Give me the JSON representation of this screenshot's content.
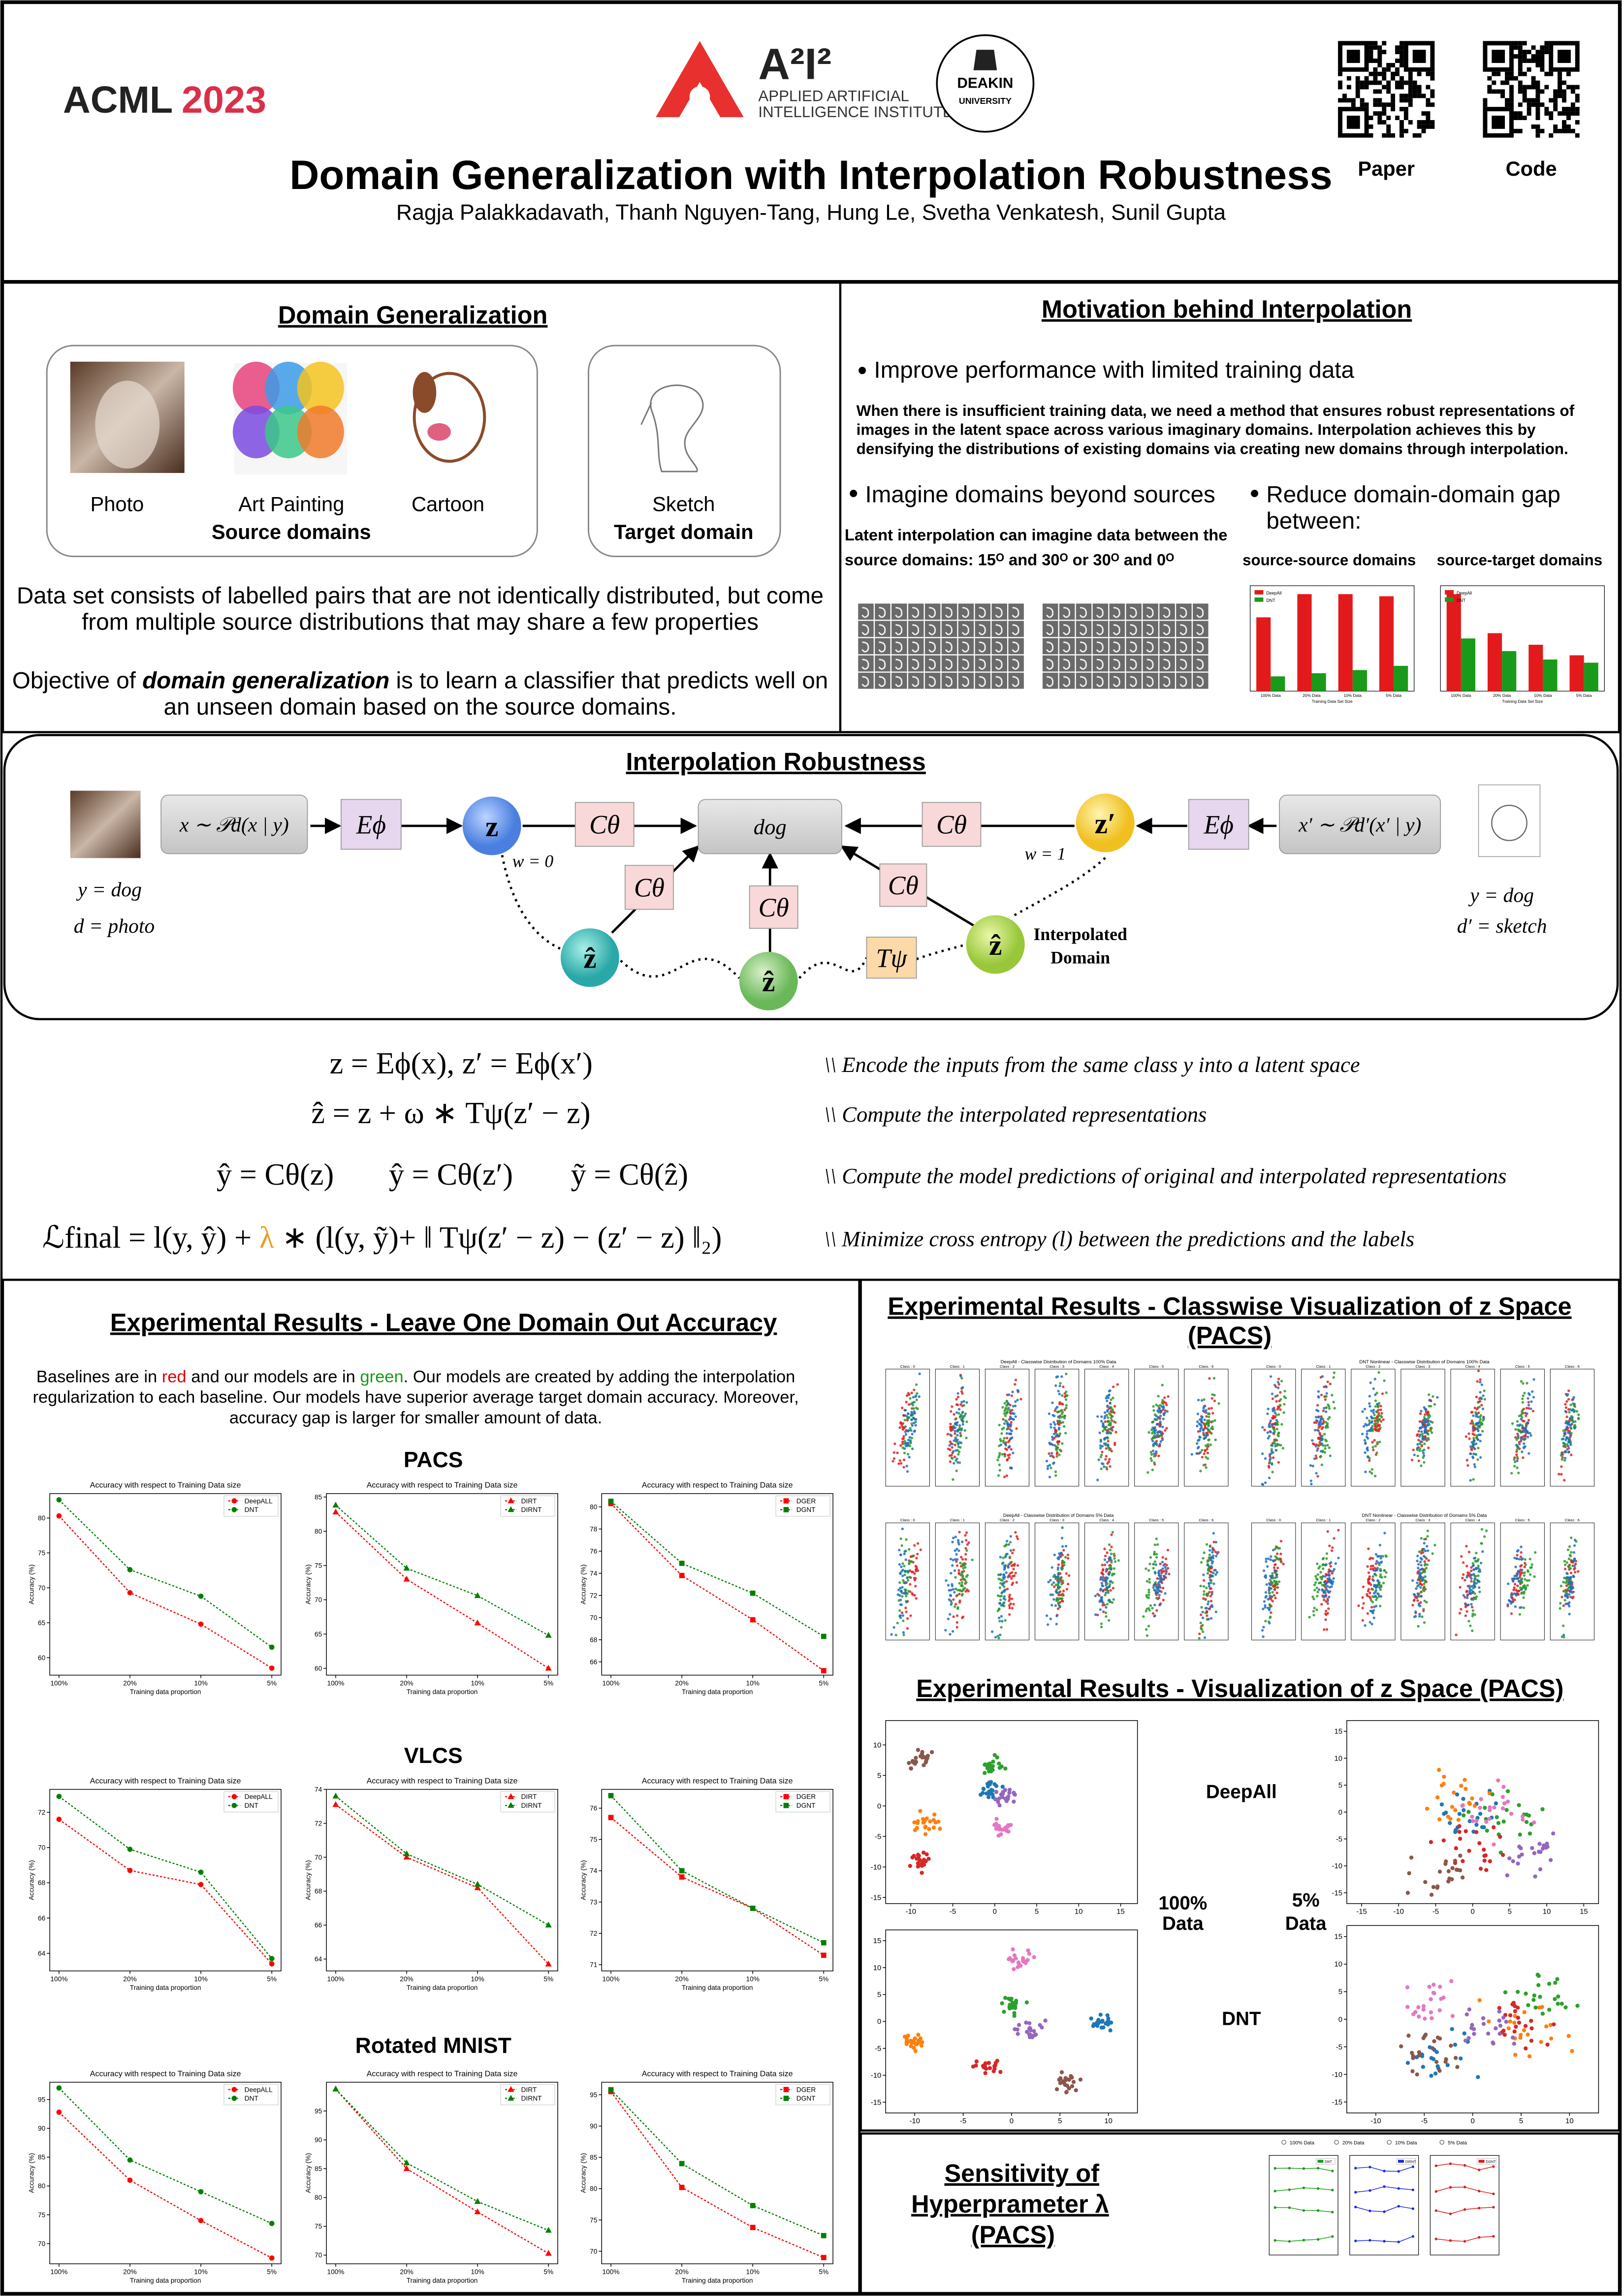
{
  "header": {
    "conf_name": "ACML",
    "conf_year": "2023",
    "institute_mark": "A²I²",
    "institute_line1": "APPLIED ARTIFICIAL",
    "institute_line2": "INTELLIGENCE INSTITUTE",
    "university_line1": "DEAKIN",
    "university_line2": "UNIVERSITY",
    "title": "Domain Generalization with Interpolation Robustness",
    "authors": "Ragja Palakkadavath, Thanh Nguyen-Tang, Hung Le, Svetha Venkatesh, Sunil Gupta",
    "qr_labels": [
      "Paper",
      "Code"
    ]
  },
  "domain_generalization": {
    "heading": "Domain Generalization",
    "source_images": [
      "Photo",
      "Art Painting",
      "Cartoon"
    ],
    "source_label": "Source domains",
    "target_images": [
      "Sketch"
    ],
    "target_label": "Target domain",
    "description": [
      "Data set consists of labelled pairs that are not identically distributed, but come",
      "from multiple source distributions that may share a few properties"
    ],
    "objective": [
      [
        "Objective of ",
        "domain generalization",
        " is to learn a classifier that predicts well on"
      ],
      [
        "an unseen domain based on the source domains."
      ]
    ]
  },
  "motivation": {
    "heading": "Motivation behind Interpolation",
    "bullet1": "Improve performance with limited training data",
    "paragraph": [
      "When there is insufficient training data, we need a method that ensures robust representations of",
      "images in the latent space across various imaginary domains. Interpolation achieves this by",
      "densifying the distributions of existing domains via creating new domains through interpolation."
    ],
    "bullet2": "Imagine domains beyond sources",
    "bullet2_text": [
      "Latent interpolation can imagine data between the",
      "source domains: 15ᴼ and  30ᴼ or 30ᴼ and 0ᴼ"
    ],
    "bullet3": [
      "Reduce domain-domain gap",
      "between:"
    ],
    "charts": [
      {
        "type": "bar",
        "title": "source-source domains",
        "categories": [
          "100% Data",
          "20% Data",
          "10% Data",
          "5% Data"
        ],
        "xlabel": "Training Data Set Size",
        "series": [
          {
            "name": "DeepAll",
            "color": "#e31a1c",
            "values": [
              70,
              92,
              92,
              90
            ]
          },
          {
            "name": "DNT",
            "color": "#1a9a1a",
            "values": [
              14,
              17,
              20,
              24
            ]
          }
        ],
        "ylim": [
          0,
          100
        ]
      },
      {
        "type": "bar",
        "title": "source-target domains",
        "categories": [
          "100% Data",
          "20% Data",
          "10% Data",
          "5% Data"
        ],
        "xlabel": "Training Data Set Size",
        "series": [
          {
            "name": "DeepAll",
            "color": "#e31a1c",
            "values": [
              92,
              55,
              44,
              34
            ]
          },
          {
            "name": "DNT",
            "color": "#1a9a1a",
            "values": [
              50,
              38,
              30,
              27
            ]
          }
        ],
        "ylim": [
          0,
          100
        ]
      }
    ]
  },
  "interpolation": {
    "heading": "Interpolation Robustness",
    "diagram": {
      "x_input": "x ∼ 𝒫d(x | y)",
      "x2_input": "x′ ∼ 𝒫d′(x′ | y)",
      "encoder": "Eϕ",
      "classifier": "Cθ",
      "transform": "Tψ",
      "z": "z",
      "z_prime": "z′",
      "z_hat": "ẑ",
      "output": "dog",
      "w0": "w = 0",
      "w1": "w = 1",
      "left_labels": [
        "y = dog",
        "d = photo"
      ],
      "right_labels": [
        "y = dog",
        "d′ = sketch"
      ],
      "interpolated": [
        "Interpolated",
        "Domain"
      ]
    },
    "equations": [
      {
        "formula": [
          "z = Eϕ(x),  z′ = Eϕ(x′)"
        ],
        "comment": "\\\\ Encode the inputs from the same class y into a latent space"
      },
      {
        "formula": [
          "ẑ = z + ω ∗ Tψ(z′ − z)"
        ],
        "comment": "\\\\ Compute the interpolated representations"
      },
      {
        "formula": [
          "ŷ = Cθ(z)",
          "ŷ = Cθ(z′)",
          "ỹ = Cθ(ẑ)"
        ],
        "comment": "\\\\ Compute the model predictions of original and interpolated representations"
      },
      {
        "formula": [
          "ℒfinal = l(y, ŷ) + ",
          "λ",
          " ∗ (l(y, ỹ)+ ‖ Tψ(z′ − z) − (z′ − z) ‖₂)"
        ],
        "comment": "\\\\ Minimize cross entropy (l) between the predictions and the labels"
      }
    ]
  },
  "results": {
    "heading": "Experimental Results - Leave One Domain Out Accuracy",
    "intro": [
      [
        "Baselines are in ",
        "red",
        " and our models are in ",
        "green",
        ". Our models are created by adding the interpolation"
      ],
      [
        "regularization to each baseline. Our models have superior average target domain accuracy. Moreover,"
      ],
      [
        "accuracy gap is larger for smaller amount of data."
      ]
    ],
    "datasets": [
      {
        "name": "PACS",
        "charts": [
          {
            "type": "line",
            "title": "Accuracy with respect to Training Data size",
            "categories": [
              "100%",
              "20%",
              "10%",
              "5%"
            ],
            "xlabel": "Training data proportion",
            "ylabel": "Accuracy (%)",
            "series": [
              {
                "name": "DeepALL",
                "color": "#ff0000",
                "marker": "circle",
                "values": [
                  80.3,
                  69.3,
                  64.8,
                  58.5
                ]
              },
              {
                "name": "DNT",
                "color": "#008000",
                "marker": "circle",
                "values": [
                  82.6,
                  72.6,
                  68.8,
                  61.5
                ]
              }
            ],
            "ylim": [
              57.5,
              83.5
            ],
            "yticks": [
              60,
              65,
              70,
              75,
              80
            ]
          },
          {
            "type": "line",
            "title": "Accuracy with respect to Training Data size",
            "categories": [
              "100%",
              "20%",
              "10%",
              "5%"
            ],
            "xlabel": "Training data proportion",
            "ylabel": "Accuracy (%)",
            "series": [
              {
                "name": "DIRT",
                "color": "#ff0000",
                "marker": "triangle",
                "values": [
                  82.8,
                  73.0,
                  66.6,
                  60.0
                ]
              },
              {
                "name": "DIRNT",
                "color": "#008000",
                "marker": "triangle",
                "values": [
                  83.8,
                  74.6,
                  70.6,
                  64.8
                ]
              }
            ],
            "ylim": [
              59,
              85.5
            ],
            "yticks": [
              60,
              65,
              70,
              75,
              80,
              85
            ]
          },
          {
            "type": "line",
            "title": "Accuracy with respect to Training Data size",
            "categories": [
              "100%",
              "20%",
              "10%",
              "5%"
            ],
            "xlabel": "Training data proportion",
            "ylabel": "Accuracy (%)",
            "series": [
              {
                "name": "DGER",
                "color": "#ff0000",
                "marker": "square",
                "values": [
                  80.3,
                  73.8,
                  69.8,
                  65.2
                ]
              },
              {
                "name": "DGNT",
                "color": "#008000",
                "marker": "square",
                "values": [
                  80.5,
                  74.9,
                  72.2,
                  68.3
                ]
              }
            ],
            "ylim": [
              64.8,
              81.2
            ],
            "yticks": [
              66,
              68,
              70,
              72,
              74,
              76,
              78,
              80
            ]
          }
        ]
      },
      {
        "name": "VLCS",
        "charts": [
          {
            "type": "line",
            "title": "Accuracy with respect to Training Data size",
            "categories": [
              "100%",
              "20%",
              "10%",
              "5%"
            ],
            "xlabel": "Training data proportion",
            "ylabel": "Accuracy (%)",
            "series": [
              {
                "name": "DeepALL",
                "color": "#ff0000",
                "marker": "circle",
                "values": [
                  71.6,
                  68.7,
                  67.9,
                  63.4
                ]
              },
              {
                "name": "DNT",
                "color": "#008000",
                "marker": "circle",
                "values": [
                  72.9,
                  69.9,
                  68.6,
                  63.7
                ]
              }
            ],
            "ylim": [
              63,
              73.3
            ],
            "yticks": [
              64,
              66,
              68,
              70,
              72
            ]
          },
          {
            "type": "line",
            "title": "Accuracy with respect to Training Data size",
            "categories": [
              "100%",
              "20%",
              "10%",
              "5%"
            ],
            "xlabel": "Training data proportion",
            "ylabel": "Accuracy (%)",
            "series": [
              {
                "name": "DIRT",
                "color": "#ff0000",
                "marker": "triangle",
                "values": [
                  73.1,
                  70.0,
                  68.2,
                  63.7
                ]
              },
              {
                "name": "DIRNT",
                "color": "#008000",
                "marker": "triangle",
                "values": [
                  73.6,
                  70.2,
                  68.4,
                  66.0
                ]
              }
            ],
            "ylim": [
              63.3,
              74
            ],
            "yticks": [
              64,
              66,
              68,
              70,
              72,
              74
            ]
          },
          {
            "type": "line",
            "title": "Accuracy with respect to Training Data size",
            "categories": [
              "100%",
              "20%",
              "10%",
              "5%"
            ],
            "xlabel": "Training data proportion",
            "ylabel": "Accuracy (%)",
            "series": [
              {
                "name": "DGER",
                "color": "#ff0000",
                "marker": "square",
                "values": [
                  75.7,
                  73.8,
                  72.8,
                  71.3
                ]
              },
              {
                "name": "DGNT",
                "color": "#008000",
                "marker": "square",
                "values": [
                  76.4,
                  74.0,
                  72.8,
                  71.7
                ]
              }
            ],
            "ylim": [
              70.8,
              76.6
            ],
            "yticks": [
              71,
              72,
              73,
              74,
              75,
              76
            ]
          }
        ]
      },
      {
        "name": "Rotated MNIST",
        "charts": [
          {
            "type": "line",
            "title": "Accuracy with respect to Training Data size",
            "categories": [
              "100%",
              "20%",
              "10%",
              "5%"
            ],
            "xlabel": "Training data proportion",
            "ylabel": "Accuracy (%)",
            "series": [
              {
                "name": "DeepALL",
                "color": "#ff0000",
                "marker": "circle",
                "values": [
                  92.8,
                  81.0,
                  74.0,
                  67.5
                ]
              },
              {
                "name": "DNT",
                "color": "#008000",
                "marker": "circle",
                "values": [
                  97.0,
                  84.5,
                  79.0,
                  73.5
                ]
              }
            ],
            "ylim": [
              66.5,
              98
            ],
            "yticks": [
              70,
              75,
              80,
              85,
              90,
              95
            ]
          },
          {
            "type": "line",
            "title": "Accuracy with respect to Training Data size",
            "categories": [
              "100%",
              "20%",
              "10%",
              "5%"
            ],
            "xlabel": "Training data proportion",
            "ylabel": "Accuracy (%)",
            "series": [
              {
                "name": "DIRT",
                "color": "#ff0000",
                "marker": "triangle",
                "values": [
                  98.8,
                  85.0,
                  77.5,
                  70.3
                ]
              },
              {
                "name": "DIRNT",
                "color": "#008000",
                "marker": "triangle",
                "values": [
                  98.8,
                  86.0,
                  79.3,
                  74.3
                ]
              }
            ],
            "ylim": [
              68.5,
              100
            ],
            "yticks": [
              70,
              75,
              80,
              85,
              90,
              95
            ]
          },
          {
            "type": "line",
            "title": "Accuracy with respect to Training Data size",
            "categories": [
              "100%",
              "20%",
              "10%",
              "5%"
            ],
            "xlabel": "Training data proportion",
            "ylabel": "Accuracy (%)",
            "series": [
              {
                "name": "DGER",
                "color": "#ff0000",
                "marker": "square",
                "values": [
                  95.5,
                  80.2,
                  73.8,
                  69.0
                ]
              },
              {
                "name": "DGNT",
                "color": "#008000",
                "marker": "square",
                "values": [
                  95.8,
                  84.0,
                  77.3,
                  72.5
                ]
              }
            ],
            "ylim": [
              68,
              97
            ],
            "yticks": [
              70,
              75,
              80,
              85,
              90,
              95
            ]
          }
        ]
      }
    ]
  },
  "classwise": {
    "heading": [
      "Experimental Results - Classwise Visualization of  z  Space",
      "(PACS)"
    ],
    "panels": [
      "DeepAll - Classwise Distribution of Domains 100% Data",
      "DNT Nonlinear - Classwise Distribution of Domains 100% Data",
      "DeepAll - Classwise Distribution of Domains 5% Data",
      "DNT Nonlinear - Classwise Distribution of Domains 5% Data"
    ],
    "class_titles": [
      "Class : 0",
      "Class : 1",
      "Class : 2",
      "Class : 3",
      "Class : 4",
      "Class : 5",
      "Class : 6"
    ]
  },
  "zspace": {
    "heading": "Experimental Results - Visualization of  z  Space (PACS)",
    "row_labels": [
      "DeepAll",
      "DNT"
    ],
    "column_labels": [
      [
        "100%",
        "Data"
      ],
      [
        "5%",
        "Data"
      ]
    ],
    "panels": [
      {
        "xlim": [
          -13,
          17
        ],
        "ylim": [
          -16,
          14
        ],
        "xticks": [
          -10,
          -5,
          0,
          5,
          10,
          15
        ],
        "yticks": [
          -15,
          -10,
          -5,
          0,
          5,
          10
        ]
      },
      {
        "xlim": [
          -17,
          17
        ],
        "ylim": [
          -17,
          17
        ],
        "xticks": [
          -15,
          -10,
          -5,
          0,
          5,
          10,
          15
        ],
        "yticks": [
          -15,
          -10,
          -5,
          0,
          5,
          10,
          15
        ]
      },
      {
        "xlim": [
          -13,
          13
        ],
        "ylim": [
          -17,
          17
        ],
        "xticks": [
          -10,
          -5,
          0,
          5,
          10
        ],
        "yticks": [
          -15,
          -10,
          -5,
          0,
          5,
          10,
          15
        ]
      },
      {
        "xlim": [
          -13,
          13
        ],
        "ylim": [
          -17,
          17
        ],
        "xticks": [
          -10,
          -5,
          0,
          5,
          10
        ],
        "yticks": [
          -15,
          -10,
          -5,
          0,
          5,
          10,
          15
        ]
      }
    ]
  },
  "sensitivity": {
    "heading": [
      "Sensitivity of",
      "Hyperprameter λ",
      "(PACS)"
    ],
    "legend": [
      "100% Data",
      "20% Data",
      "10% Data",
      "5% Data"
    ],
    "panel_legends": [
      "DNT",
      "DIRNT",
      "DGNT"
    ]
  }
}
